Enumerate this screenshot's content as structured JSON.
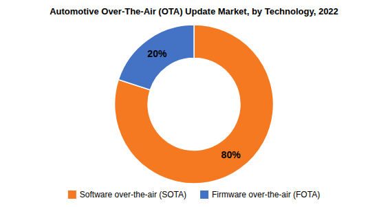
{
  "chart_data": {
    "type": "donut",
    "title": "Automotive Over-The-Air (OTA) Update Market, by Technology, 2022",
    "categories": [
      "Software over-the-air (SOTA)",
      "Firmware over-the-air (FOTA)"
    ],
    "values": [
      80,
      20
    ],
    "value_labels": [
      "80%",
      "20%"
    ],
    "colors": [
      "#F47920",
      "#4472C4"
    ],
    "data_labels": true,
    "legend": "bottom"
  }
}
